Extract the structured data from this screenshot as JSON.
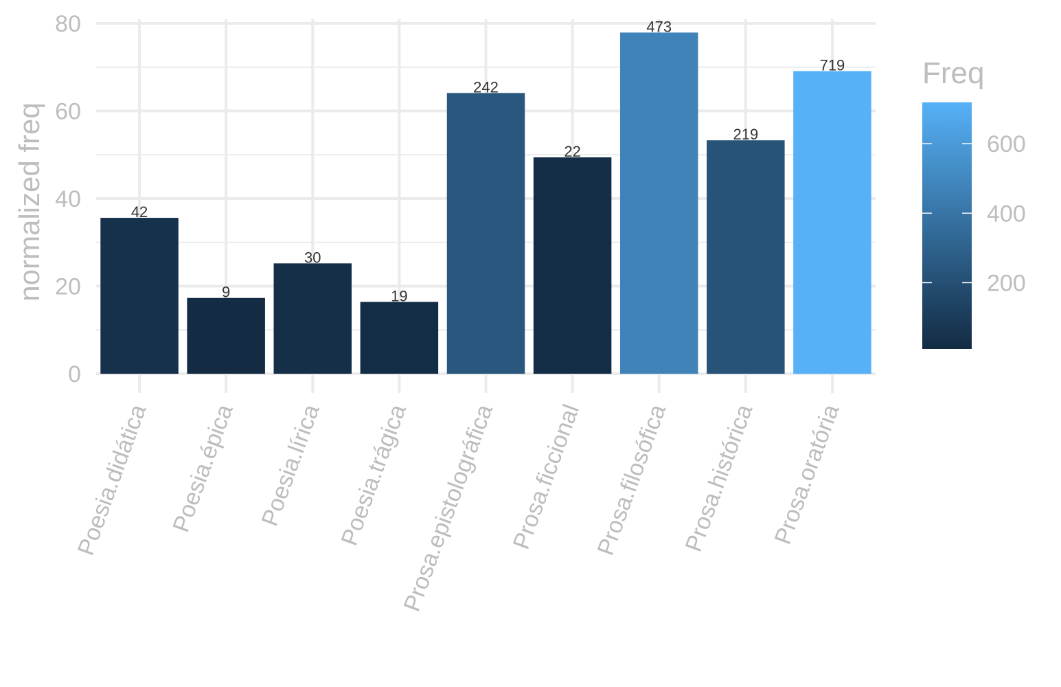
{
  "chart_data": {
    "type": "bar",
    "categories": [
      "Poesia.didática",
      "Poesia.épica",
      "Poesia.lírica",
      "Poesia.trágica",
      "Prosa.epistolográfica",
      "Prosa.ficcional",
      "Prosa.filosófica",
      "Prosa.histórica",
      "Prosa.oratória"
    ],
    "values": [
      35.6,
      17.3,
      25.2,
      16.4,
      64.1,
      49.4,
      77.9,
      53.3,
      69.1
    ],
    "freq_labels": [
      "42",
      "9",
      "30",
      "19",
      "242",
      "22",
      "473",
      "219",
      "719"
    ],
    "freq": [
      42,
      9,
      30,
      19,
      242,
      22,
      473,
      219,
      719
    ],
    "title": "",
    "xlabel": "",
    "ylabel": "normalized freq",
    "ylim": [
      0,
      80
    ],
    "y_ticks": [
      "0",
      "20",
      "40",
      "60",
      "80"
    ],
    "y_tick_values": [
      0,
      20,
      40,
      60,
      80
    ],
    "grid": true,
    "legend": {
      "title": "Freq",
      "placement": "right",
      "type": "colorbar",
      "range": [
        9,
        719
      ],
      "ticks": [
        "200",
        "400",
        "600"
      ],
      "tick_values": [
        200,
        400,
        600
      ],
      "color_low": "#132b43",
      "color_high": "#56b1f7"
    }
  }
}
